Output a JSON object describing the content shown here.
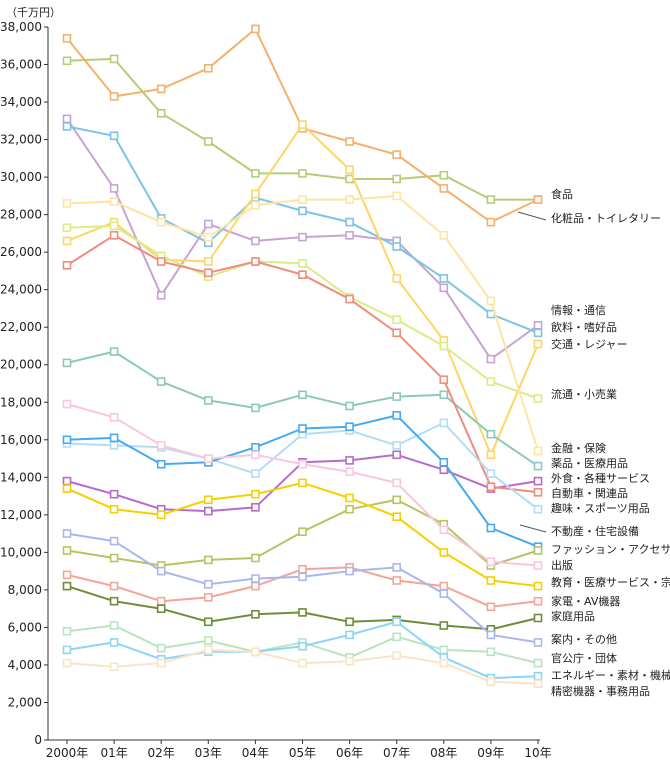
{
  "chart_data": {
    "type": "line",
    "unit_label": "（千万円）",
    "x": [
      "2000年",
      "01年",
      "02年",
      "03年",
      "04年",
      "05年",
      "06年",
      "07年",
      "08年",
      "09年",
      "10年"
    ],
    "ylim": [
      0,
      38000
    ],
    "yticks": [
      "0",
      "2,000",
      "4,000",
      "6,000",
      "8,000",
      "10,000",
      "12,000",
      "14,000",
      "16,000",
      "18,000",
      "20,000",
      "22,000",
      "24,000",
      "26,000",
      "28,000",
      "30,000",
      "32,000",
      "34,000",
      "36,000",
      "38,000"
    ],
    "grid": false,
    "legend": "right",
    "series": [
      {
        "name": "食品",
        "color": "#b5cc78",
        "values": [
          36200,
          36300,
          33400,
          31900,
          30200,
          30200,
          29900,
          29900,
          30100,
          28800,
          28800
        ]
      },
      {
        "name": "化粧品・トイレタリー",
        "color": "#f5b06b",
        "values": [
          37400,
          34300,
          34700,
          35800,
          37900,
          32600,
          31900,
          31200,
          29400,
          27600,
          28800
        ]
      },
      {
        "name": "情報・通信",
        "color": "#c8a2d4",
        "values": [
          33100,
          29400,
          23700,
          27500,
          26600,
          26800,
          26900,
          26600,
          24100,
          20300,
          22100
        ]
      },
      {
        "name": "飲料・嗜好品",
        "color": "#7cc3e6",
        "values": [
          32700,
          32200,
          27800,
          26500,
          28900,
          28200,
          27600,
          26300,
          24600,
          22700,
          21700
        ]
      },
      {
        "name": "交通・レジャー",
        "color": "#fdd666",
        "values": [
          26600,
          27600,
          25600,
          25500,
          29100,
          32800,
          30400,
          24600,
          21300,
          15200,
          21100
        ]
      },
      {
        "name": "流通・小売業",
        "color": "#d9ec86",
        "values": [
          27300,
          27400,
          25800,
          24700,
          25500,
          25400,
          23600,
          22400,
          21000,
          19100,
          18200
        ]
      },
      {
        "name": "金融・保険",
        "color": "#fde4a0",
        "values": [
          28600,
          28700,
          27600,
          26800,
          28500,
          28800,
          28800,
          29000,
          26900,
          23400,
          15400
        ]
      },
      {
        "name": "薬品・医療用品",
        "color": "#8cc9bb",
        "values": [
          20100,
          20700,
          19100,
          18100,
          17700,
          18400,
          17800,
          18300,
          18400,
          16300,
          14600
        ]
      },
      {
        "name": "外食・各種サービス",
        "color": "#b46cc8",
        "values": [
          13800,
          13100,
          12300,
          12200,
          12400,
          14800,
          14900,
          15200,
          14400,
          13400,
          13800
        ]
      },
      {
        "name": "自動車・関連品",
        "color": "#ef8c7c",
        "values": [
          25300,
          26900,
          25500,
          24900,
          25500,
          24800,
          23500,
          21700,
          19200,
          13500,
          13200
        ]
      },
      {
        "name": "趣味・スポーツ用品",
        "color": "#b5dcf5",
        "values": [
          15800,
          15700,
          15600,
          15000,
          14200,
          16300,
          16500,
          15700,
          16900,
          14200,
          12300
        ]
      },
      {
        "name": "不動産・住宅設備",
        "color": "#45aaf0",
        "values": [
          16000,
          16100,
          14700,
          14800,
          15600,
          16600,
          16700,
          17300,
          14800,
          11300,
          10300
        ]
      },
      {
        "name": "ファッション・アクセサリー",
        "color": "#b5c562",
        "values": [
          10100,
          9700,
          9300,
          9600,
          9700,
          11100,
          12300,
          12800,
          11500,
          9300,
          10100
        ]
      },
      {
        "name": "出版",
        "color": "#f9c6e0",
        "values": [
          17900,
          17200,
          15700,
          15000,
          15200,
          14700,
          14300,
          13700,
          11200,
          9500,
          9300
        ]
      },
      {
        "name": "教育・医療サービス・宗教",
        "color": "#f5d000",
        "values": [
          13400,
          12300,
          12000,
          12800,
          13100,
          13700,
          12900,
          11900,
          10000,
          8500,
          8200
        ]
      },
      {
        "name": "家電・AV機器",
        "color": "#f5a597",
        "values": [
          8800,
          8200,
          7400,
          7600,
          8200,
          9100,
          9200,
          8500,
          8200,
          7100,
          7400
        ]
      },
      {
        "name": "家庭用品",
        "color": "#6f8c3a",
        "values": [
          8200,
          7400,
          7000,
          6300,
          6700,
          6800,
          6300,
          6400,
          6100,
          5900,
          6500
        ]
      },
      {
        "name": "案内・その他",
        "color": "#a9b7ee",
        "values": [
          11000,
          10600,
          9000,
          8300,
          8600,
          8700,
          9000,
          9200,
          7800,
          5600,
          5200
        ]
      },
      {
        "name": "官公庁・団体",
        "color": "#b7e5c0",
        "values": [
          5800,
          6100,
          4900,
          5300,
          4700,
          5200,
          4400,
          5500,
          4800,
          4700,
          4100
        ]
      },
      {
        "name": "エネルギー・素材・機械",
        "color": "#8dd4f5",
        "values": [
          4800,
          5200,
          4300,
          4700,
          4700,
          5000,
          5600,
          6300,
          4400,
          3300,
          3400
        ]
      },
      {
        "name": "精密機器・事務用品",
        "color": "#fbe4c6",
        "values": [
          4100,
          3900,
          4100,
          4800,
          4700,
          4100,
          4200,
          4500,
          4100,
          3100,
          3000
        ]
      }
    ]
  }
}
